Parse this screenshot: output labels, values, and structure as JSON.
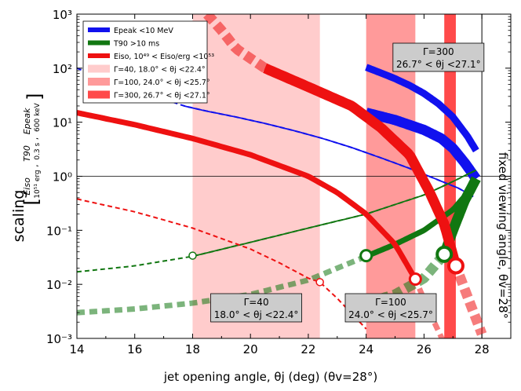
{
  "chart_data": {
    "type": "line",
    "title": "",
    "xlabel": "jet opening angle, θj (deg) (θv=28°)",
    "ylabel": "scaling",
    "ylabel_formula_line1": "[ Eiso / (10^51 erg) , T90 / (0.3 s) , Epeak / (600 keV) ]",
    "ylabel_formula_eiso": "Eiso",
    "ylabel_formula_eiso_unit": "10⁵¹ erg",
    "ylabel_formula_t90": "T90",
    "ylabel_formula_t90_unit": "0.3 s",
    "ylabel_formula_epeak": "Epeak",
    "ylabel_formula_epeak_unit": "600 keV",
    "xlim": [
      14,
      29
    ],
    "ylim": [
      0.001,
      1000
    ],
    "yscale": "log",
    "x_ticks": [
      14,
      16,
      18,
      20,
      22,
      24,
      26,
      28
    ],
    "x_tick_labels": [
      "14",
      "16",
      "18",
      "20",
      "22",
      "24",
      "26",
      "28"
    ],
    "y_ticks": [
      0.001,
      0.01,
      0.1,
      1,
      10,
      100,
      1000
    ],
    "y_tick_labels": [
      "10⁻³",
      "10⁻²",
      "10⁻¹",
      "10⁰",
      "10¹",
      "10²",
      "10³"
    ],
    "reference_line_y": 1,
    "fixed_viewing_angle_x": 28,
    "fixed_viewing_label": "fixed viewing angle, θv=28°",
    "colors": {
      "epeak": "#1111ee",
      "t90": "#117711",
      "eiso": "#ee1111",
      "band40": "#ffcccc",
      "band100": "#ff9a9a",
      "band300": "#ff4a4a"
    },
    "bands": [
      {
        "name": "Γ=40",
        "range": [
          18.0,
          22.4
        ],
        "label_line1": "Γ=40",
        "label_line2": "18.0° < θj <22.4°"
      },
      {
        "name": "Γ=100",
        "range": [
          24.0,
          25.7
        ],
        "label_line1": "Γ=100",
        "label_line2": "24.0° < θj <25.7°"
      },
      {
        "name": "Γ=300",
        "range": [
          26.7,
          27.1
        ],
        "label_line1": "Γ=300",
        "label_line2": "26.7° < θj <27.1°"
      }
    ],
    "series": [
      {
        "name": "Epeak Γ=40",
        "kind": "epeak",
        "gamma": 40,
        "x": [
          14,
          15,
          16,
          17,
          17.7,
          18.5,
          19.5,
          20.5,
          21.5,
          22.5,
          23.5,
          24.5,
          25.5,
          26.5,
          27.2,
          27.7
        ],
        "y": [
          100,
          60,
          40,
          27,
          20,
          16,
          12.5,
          9.5,
          7,
          5,
          3.4,
          2.2,
          1.4,
          0.85,
          0.6,
          0.42
        ],
        "thick_range": [
          17.7,
          27.7
        ]
      },
      {
        "name": "Epeak Γ=100",
        "kind": "epeak",
        "gamma": 100,
        "x": [
          24,
          24.5,
          25,
          25.5,
          26,
          26.5,
          27,
          27.5,
          27.8
        ],
        "y": [
          104,
          82,
          64,
          48,
          34,
          22,
          12.5,
          5.5,
          3
        ],
        "thick_range": [
          24,
          27.8
        ]
      },
      {
        "name": "Epeak Γ=300",
        "kind": "epeak",
        "gamma": 300,
        "x": [
          24,
          25,
          26,
          26.6,
          27,
          27.4,
          27.8
        ],
        "y": [
          15,
          11,
          7.2,
          5,
          3.3,
          1.8,
          0.9
        ],
        "thick_range": [
          24,
          27.8
        ]
      },
      {
        "name": "T90 Γ=40",
        "kind": "t90",
        "gamma": 40,
        "x": [
          14,
          16,
          18,
          20,
          22,
          24,
          26,
          27,
          27.8
        ],
        "y": [
          0.017,
          0.022,
          0.033,
          0.06,
          0.11,
          0.2,
          0.45,
          0.8,
          1.3
        ],
        "thick_range": [
          18,
          27.8
        ]
      },
      {
        "name": "T90 Γ=100",
        "kind": "t90",
        "gamma": 100,
        "x": [
          14,
          16,
          18,
          20,
          22,
          24,
          25,
          26,
          27,
          27.8
        ],
        "y": [
          0.003,
          0.0035,
          0.0045,
          0.0065,
          0.012,
          0.033,
          0.055,
          0.1,
          0.24,
          0.75
        ],
        "thick_range": [
          24,
          27.8
        ]
      },
      {
        "name": "T90 Γ=300",
        "kind": "t90",
        "gamma": 300,
        "x": [
          24,
          25,
          26,
          26.7,
          27,
          27.4,
          27.8
        ],
        "y": [
          0.0045,
          0.0065,
          0.013,
          0.036,
          0.1,
          0.35,
          0.9
        ],
        "thick_range": [
          26.7,
          27.8
        ]
      },
      {
        "name": "Eiso Γ=40",
        "kind": "eiso",
        "gamma": 40,
        "x": [
          14,
          16,
          18,
          20,
          21,
          22,
          22.4,
          23,
          24
        ],
        "y": [
          0.38,
          0.22,
          0.11,
          0.045,
          0.025,
          0.013,
          0.011,
          0.0055,
          0.0015
        ],
        "thick_range": [
          22.4,
          22.4
        ]
      },
      {
        "name": "Eiso Γ=100",
        "kind": "eiso",
        "gamma": 100,
        "x": [
          14,
          16,
          18,
          20,
          22,
          23,
          24,
          25,
          25.7,
          26.2,
          26.7
        ],
        "y": [
          15,
          9,
          5,
          2.5,
          1,
          0.5,
          0.2,
          0.055,
          0.0125,
          0.003,
          0.0008
        ],
        "thick_range": [
          14,
          25.7
        ]
      },
      {
        "name": "Eiso Γ=300",
        "kind": "eiso",
        "gamma": 300,
        "x": [
          18.5,
          19,
          19.5,
          20.5,
          22,
          23.5,
          24.5,
          25.5,
          26.2,
          26.7,
          27.1,
          27.5,
          28
        ],
        "y": [
          1000,
          500,
          230,
          100,
          45,
          20,
          8,
          2.5,
          0.5,
          0.13,
          0.022,
          0.006,
          0.0012
        ],
        "thick_range": [
          20.5,
          27.1
        ]
      }
    ],
    "markers": [
      {
        "kind": "t90",
        "x": 18.0,
        "y": 0.034,
        "size": "small"
      },
      {
        "kind": "t90",
        "x": 24.0,
        "y": 0.034,
        "size": "medium"
      },
      {
        "kind": "t90",
        "x": 26.7,
        "y": 0.036,
        "size": "large"
      },
      {
        "kind": "eiso",
        "x": 22.4,
        "y": 0.011,
        "size": "small"
      },
      {
        "kind": "eiso",
        "x": 25.7,
        "y": 0.0125,
        "size": "medium"
      },
      {
        "kind": "eiso",
        "x": 27.1,
        "y": 0.022,
        "size": "large"
      }
    ],
    "legend": {
      "position": "top-left",
      "entries": [
        {
          "label": "Epeak <10 MeV",
          "color_key": "epeak",
          "style": "line"
        },
        {
          "label": "T90 >10 ms",
          "color_key": "t90",
          "style": "line"
        },
        {
          "label": "Eiso, 10⁴⁹ < Eiso/erg <10⁵³",
          "color_key": "eiso",
          "style": "line"
        },
        {
          "label": "Γ=40, 18.0° < θj <22.4°",
          "color_key": "band40",
          "style": "patch"
        },
        {
          "label": "Γ=100, 24.0° < θj <25.7°",
          "color_key": "band100",
          "style": "patch"
        },
        {
          "label": "Γ=300, 26.7° < θj <27.1°",
          "color_key": "band300",
          "style": "patch"
        }
      ]
    }
  }
}
